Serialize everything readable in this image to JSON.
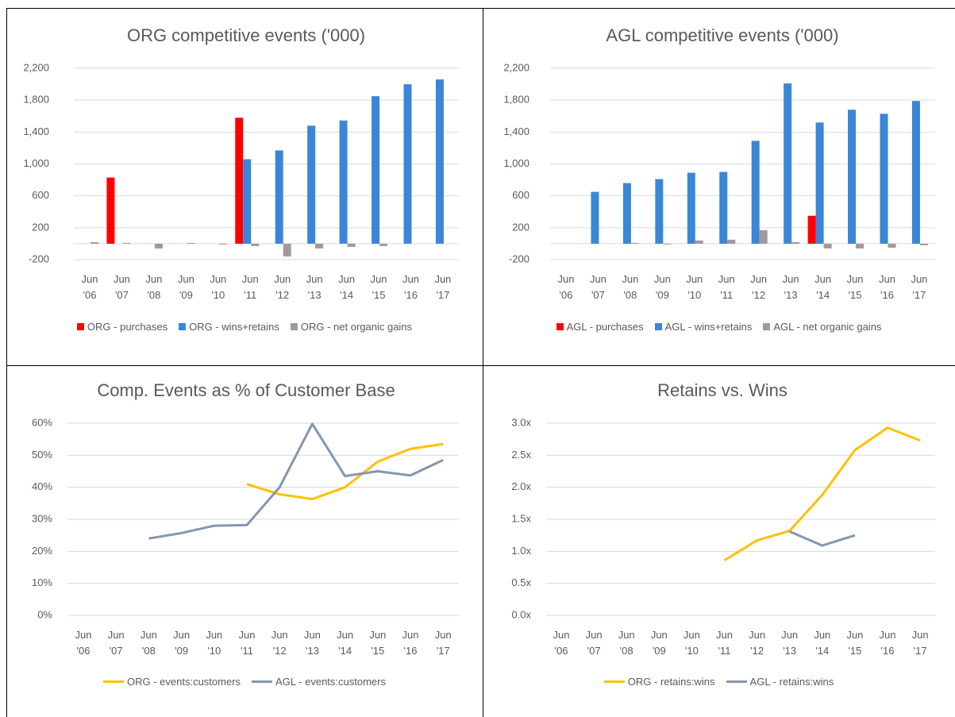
{
  "chart_data": [
    {
      "type": "bar",
      "title": "ORG competitive events ('000)",
      "categories": [
        "Jun '06",
        "Jun '07",
        "Jun '08",
        "Jun '09",
        "Jun '10",
        "Jun '11",
        "Jun '12",
        "Jun '13",
        "Jun '14",
        "Jun '15",
        "Jun '16",
        "Jun '17"
      ],
      "series": [
        {
          "name": "ORG - purchases",
          "color": "#ff0000",
          "values": [
            null,
            830,
            null,
            null,
            null,
            1580,
            null,
            null,
            null,
            null,
            null,
            null
          ]
        },
        {
          "name": "ORG - wins+retains",
          "color": "#3a86d8",
          "values": [
            null,
            null,
            null,
            null,
            null,
            1060,
            1170,
            1480,
            1545,
            1850,
            2000,
            2060
          ]
        },
        {
          "name": "ORG - net organic gains",
          "color": "#a5979e",
          "values": [
            20,
            10,
            -60,
            10,
            -10,
            -30,
            -160,
            -60,
            -40,
            -30,
            null,
            null
          ]
        }
      ],
      "ylim": [
        -200,
        2200
      ],
      "yticks": [
        -200,
        200,
        600,
        {
          "value": 1000,
          "label": "1,000"
        },
        {
          "value": 1400,
          "label": "1,400"
        },
        {
          "value": 1800,
          "label": "1,800"
        },
        {
          "value": 2200,
          "label": "2,200"
        }
      ],
      "grid": true,
      "legend": "bottom"
    },
    {
      "type": "bar",
      "title": "AGL competitive events ('000)",
      "categories": [
        "Jun '06",
        "Jun '07",
        "Jun '08",
        "Jun '09",
        "Jun '10",
        "Jun '11",
        "Jun '12",
        "Jun '13",
        "Jun '14",
        "Jun '15",
        "Jun '16",
        "Jun '17"
      ],
      "series": [
        {
          "name": "AGL - purchases",
          "color": "#ff0000",
          "values": [
            null,
            null,
            null,
            null,
            null,
            null,
            null,
            null,
            350,
            null,
            null,
            null
          ]
        },
        {
          "name": "AGL - wins+retains",
          "color": "#3a86d8",
          "values": [
            null,
            650,
            760,
            810,
            890,
            900,
            1290,
            2010,
            1520,
            1680,
            1630,
            1790
          ]
        },
        {
          "name": "AGL - net organic gains",
          "color": "#a5979e",
          "values": [
            null,
            null,
            10,
            -10,
            40,
            50,
            170,
            20,
            -60,
            -60,
            -50,
            -20
          ]
        }
      ],
      "ylim": [
        -200,
        2200
      ],
      "yticks": [
        -200,
        200,
        600,
        {
          "value": 1000,
          "label": "1,000"
        },
        {
          "value": 1400,
          "label": "1,400"
        },
        {
          "value": 1800,
          "label": "1,800"
        },
        {
          "value": 2200,
          "label": "2,200"
        }
      ],
      "grid": true,
      "legend": "bottom"
    },
    {
      "type": "line",
      "title": "Comp. Events as % of Customer Base",
      "categories": [
        "Jun '06",
        "Jun '07",
        "Jun '08",
        "Jun '09",
        "Jun '10",
        "Jun '11",
        "Jun '12",
        "Jun '13",
        "Jun '14",
        "Jun '15",
        "Jun '16",
        "Jun '17"
      ],
      "series": [
        {
          "name": "ORG - events:customers",
          "color": "#ffc000",
          "values": [
            null,
            null,
            null,
            null,
            null,
            41,
            37.8,
            36.3,
            40,
            48,
            52,
            53.5
          ]
        },
        {
          "name": "AGL - events:customers",
          "color": "#8496b0",
          "values": [
            null,
            null,
            24,
            25.7,
            28,
            28.2,
            40,
            59.8,
            43.5,
            45,
            43.7,
            48.5
          ]
        }
      ],
      "ylim": [
        0,
        60
      ],
      "yticks": [
        {
          "value": 0,
          "label": "0%"
        },
        {
          "value": 10,
          "label": "10%"
        },
        {
          "value": 20,
          "label": "20%"
        },
        {
          "value": 30,
          "label": "30%"
        },
        {
          "value": 40,
          "label": "40%"
        },
        {
          "value": 50,
          "label": "50%"
        },
        {
          "value": 60,
          "label": "60%"
        }
      ],
      "grid": true,
      "legend": "bottom"
    },
    {
      "type": "line",
      "title": "Retains vs. Wins",
      "categories": [
        "Jun '06",
        "Jun '07",
        "Jun '08",
        "Jun '09",
        "Jun '10",
        "Jun '11",
        "Jun '12",
        "Jun '13",
        "Jun '14",
        "Jun '15",
        "Jun '16",
        "Jun '17"
      ],
      "series": [
        {
          "name": "ORG - retains:wins",
          "color": "#ffc000",
          "values": [
            null,
            null,
            null,
            null,
            null,
            0.86,
            1.17,
            1.32,
            1.88,
            2.58,
            2.93,
            2.73
          ]
        },
        {
          "name": "AGL - retains:wins",
          "color": "#8496b0",
          "values": [
            null,
            null,
            null,
            null,
            null,
            null,
            null,
            1.31,
            1.09,
            1.25,
            null,
            null
          ]
        }
      ],
      "ylim": [
        0,
        3
      ],
      "yticks": [
        {
          "value": 0,
          "label": "0.0x"
        },
        {
          "value": 0.5,
          "label": "0.5x"
        },
        {
          "value": 1,
          "label": "1.0x"
        },
        {
          "value": 1.5,
          "label": "1.5x"
        },
        {
          "value": 2,
          "label": "2.0x"
        },
        {
          "value": 2.5,
          "label": "2.5x"
        },
        {
          "value": 3,
          "label": "3.0x"
        }
      ],
      "grid": true,
      "legend": "bottom"
    }
  ]
}
